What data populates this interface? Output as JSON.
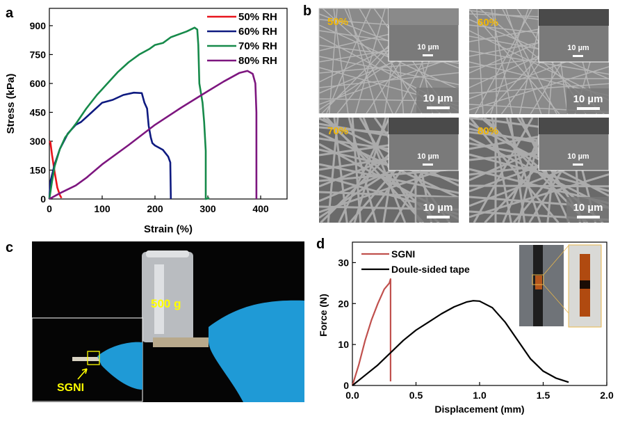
{
  "panel_labels": {
    "a": "a",
    "b": "b",
    "c": "c",
    "d": "d"
  },
  "chart_data": [
    {
      "type": "line",
      "panel": "a",
      "xlabel": "Strain (%)",
      "ylabel": "Stress (kPa)",
      "xlim": [
        0,
        450
      ],
      "ylim": [
        0,
        990
      ],
      "xticks": [
        0,
        100,
        200,
        300,
        400
      ],
      "yticks": [
        0,
        150,
        300,
        450,
        600,
        750,
        900
      ],
      "grid": false,
      "legend_position": "top-right",
      "series": [
        {
          "name": "50% RH",
          "color": "#e8141c",
          "points": [
            [
              0,
              300
            ],
            [
              2,
              295
            ],
            [
              5,
              230
            ],
            [
              10,
              140
            ],
            [
              15,
              60
            ],
            [
              20,
              20
            ],
            [
              23,
              5
            ]
          ]
        },
        {
          "name": "60% RH",
          "color": "#0e1a80",
          "points": [
            [
              0,
              0
            ],
            [
              2,
              90
            ],
            [
              10,
              180
            ],
            [
              20,
              260
            ],
            [
              35,
              340
            ],
            [
              50,
              385
            ],
            [
              60,
              400
            ],
            [
              80,
              450
            ],
            [
              100,
              500
            ],
            [
              120,
              515
            ],
            [
              140,
              540
            ],
            [
              160,
              552
            ],
            [
              175,
              550
            ],
            [
              180,
              500
            ],
            [
              185,
              470
            ],
            [
              188,
              380
            ],
            [
              192,
              320
            ],
            [
              195,
              290
            ],
            [
              200,
              278
            ],
            [
              215,
              255
            ],
            [
              225,
              220
            ],
            [
              229,
              190
            ],
            [
              230,
              0
            ]
          ]
        },
        {
          "name": "70% RH",
          "color": "#168a4a",
          "points": [
            [
              0,
              0
            ],
            [
              5,
              90
            ],
            [
              10,
              170
            ],
            [
              20,
              260
            ],
            [
              30,
              320
            ],
            [
              50,
              390
            ],
            [
              70,
              470
            ],
            [
              90,
              540
            ],
            [
              100,
              570
            ],
            [
              110,
              600
            ],
            [
              130,
              660
            ],
            [
              150,
              710
            ],
            [
              170,
              750
            ],
            [
              190,
              780
            ],
            [
              200,
              800
            ],
            [
              215,
              810
            ],
            [
              230,
              840
            ],
            [
              260,
              870
            ],
            [
              275,
              890
            ],
            [
              280,
              880
            ],
            [
              282,
              800
            ],
            [
              284,
              600
            ],
            [
              290,
              500
            ],
            [
              293,
              400
            ],
            [
              296,
              250
            ],
            [
              296,
              0
            ],
            [
              303,
              5
            ]
          ]
        },
        {
          "name": "80% RH",
          "color": "#7d167f",
          "points": [
            [
              0,
              0
            ],
            [
              20,
              30
            ],
            [
              50,
              70
            ],
            [
              70,
              110
            ],
            [
              100,
              180
            ],
            [
              150,
              280
            ],
            [
              200,
              385
            ],
            [
              250,
              475
            ],
            [
              300,
              560
            ],
            [
              330,
              610
            ],
            [
              360,
              655
            ],
            [
              375,
              665
            ],
            [
              385,
              650
            ],
            [
              390,
              600
            ],
            [
              392,
              450
            ],
            [
              392,
              0
            ]
          ]
        }
      ]
    },
    {
      "type": "line",
      "panel": "d",
      "xlabel": "Displacement (mm)",
      "ylabel": "Force (N)",
      "xlim": [
        0,
        2.0
      ],
      "ylim": [
        0,
        35
      ],
      "xticks": [
        0.0,
        0.5,
        1.0,
        1.5,
        2.0
      ],
      "xtick_labels": [
        "0.0",
        "0.5",
        "1.0",
        "1.5",
        "2.0"
      ],
      "yticks": [
        0,
        10,
        20,
        30
      ],
      "grid": false,
      "legend_position": "top-left",
      "series": [
        {
          "name": "SGNI",
          "color": "#c0504d",
          "points": [
            [
              0,
              0
            ],
            [
              0.05,
              5
            ],
            [
              0.1,
              11
            ],
            [
              0.15,
              16
            ],
            [
              0.2,
              20
            ],
            [
              0.25,
              23.5
            ],
            [
              0.29,
              25
            ],
            [
              0.3,
              26
            ],
            [
              0.3,
              1
            ]
          ]
        },
        {
          "name": "Doule-sided tape",
          "color": "#000000",
          "points": [
            [
              0,
              0
            ],
            [
              0.1,
              2.5
            ],
            [
              0.2,
              5
            ],
            [
              0.3,
              8
            ],
            [
              0.4,
              11
            ],
            [
              0.5,
              13.5
            ],
            [
              0.6,
              15.5
            ],
            [
              0.7,
              17.5
            ],
            [
              0.8,
              19.2
            ],
            [
              0.9,
              20.4
            ],
            [
              0.95,
              20.7
            ],
            [
              1.0,
              20.6
            ],
            [
              1.1,
              19
            ],
            [
              1.2,
              15.5
            ],
            [
              1.3,
              11
            ],
            [
              1.4,
              6.5
            ],
            [
              1.5,
              3.5
            ],
            [
              1.6,
              1.8
            ],
            [
              1.7,
              0.8
            ]
          ]
        }
      ]
    }
  ],
  "sem_images": [
    {
      "label": "50%",
      "scale": "10 µm",
      "inset_scale": "10 µm"
    },
    {
      "label": "60%",
      "scale": "10 µm",
      "inset_scale": "10 µm"
    },
    {
      "label": "70%",
      "scale": "10 µm",
      "inset_scale": "10 µm"
    },
    {
      "label": "80%",
      "scale": "10 µm",
      "inset_scale": "10 µm"
    }
  ],
  "photo_c": {
    "weight_label": "500 g",
    "sample_label": "SGNI"
  },
  "colors": {
    "label_yellow": "#f2b705",
    "photo_yellow": "#ffff00",
    "glove_blue": "#1f9ad6"
  }
}
